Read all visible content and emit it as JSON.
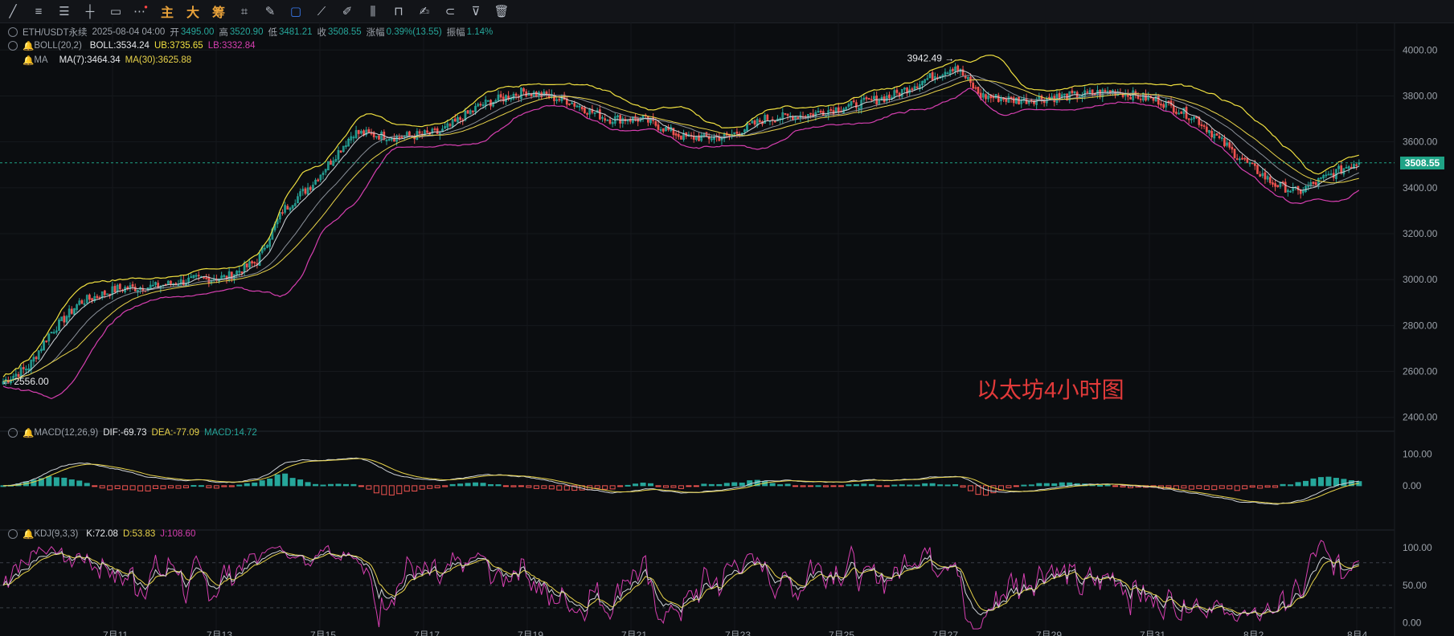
{
  "toolbar": {
    "icons": [
      "line-tool-icon",
      "parallel-lines-icon",
      "horizontal-lines-icon",
      "ray-icon",
      "rectangle-icon",
      "more-icon",
      "",
      "",
      "",
      "brush-icon",
      "pen-icon",
      "bookmark-icon",
      "ruler-icon",
      "pencil-icon",
      "candle-icon",
      "lock-icon",
      "edit-icon",
      "magnet-icon",
      "filter-icon",
      "trash-icon"
    ],
    "labels": [
      "主",
      "大",
      "筹"
    ]
  },
  "header": {
    "symbol": "ETH/USDT永续",
    "time": "2025-08-04 04:00",
    "open_label": "开",
    "open": "3495.00",
    "high_label": "高",
    "high": "3520.90",
    "low_label": "低",
    "low": "3481.21",
    "close_label": "收",
    "close": "3508.55",
    "change_label": "涨幅",
    "change": "0.39%(13.55)",
    "amp_label": "振幅",
    "amp": "1.14%"
  },
  "boll": {
    "name": "BOLL(20,2)",
    "mid": "BOLL:3534.24",
    "ub": "UB:3735.65",
    "lb": "LB:3332.84"
  },
  "ma": {
    "name": "MA",
    "ma7": "MA(7):3464.34",
    "ma30": "MA(30):3625.88"
  },
  "macd": {
    "name": "MACD(12,26,9)",
    "dif": "DIF:-69.73",
    "dea": "DEA:-77.09",
    "macd": "MACD:14.72"
  },
  "kdj": {
    "name": "KDJ(9,3,3)",
    "k": "K:72.08",
    "d": "D:53.83",
    "j": "J:108.60"
  },
  "last_price": "3508.55",
  "annotations": {
    "high_mark": "3942.49 →",
    "low_mark": "← 2556.00"
  },
  "watermark": "以太坊4小时图",
  "colors": {
    "up": "#26a69a",
    "down": "#ef5350",
    "ub": "#f0e040",
    "lb": "#d63fb0",
    "mid": "#cfd3d8",
    "ma30": "#e8d34a",
    "badge": "#1fa386"
  },
  "chart_data": [
    {
      "type": "candlestick",
      "title": "以太坊4小时图",
      "y_ticks": [
        "4000.00",
        "3800.00",
        "3600.00",
        "3400.00",
        "3200.00",
        "3000.00",
        "2800.00",
        "2600.00",
        "2400.00"
      ],
      "x_ticks": [
        "7月11",
        "7月13",
        "7月15",
        "7月17",
        "7月19",
        "7月21",
        "7月23",
        "7月25",
        "7月27",
        "7月29",
        "7月31",
        "8月2",
        "8月4"
      ],
      "ylim": [
        2350,
        4050
      ],
      "max_label": 3942.49,
      "min_label": 2556.0,
      "last": 3508.55,
      "key_points": [
        [
          0,
          2556
        ],
        [
          10,
          2620
        ],
        [
          18,
          2760
        ],
        [
          30,
          2900
        ],
        [
          45,
          2960
        ],
        [
          60,
          2970
        ],
        [
          75,
          3000
        ],
        [
          88,
          3010
        ],
        [
          100,
          3080
        ],
        [
          110,
          3300
        ],
        [
          122,
          3420
        ],
        [
          138,
          3640
        ],
        [
          155,
          3620
        ],
        [
          172,
          3640
        ],
        [
          188,
          3760
        ],
        [
          205,
          3820
        ],
        [
          222,
          3780
        ],
        [
          238,
          3700
        ],
        [
          252,
          3700
        ],
        [
          268,
          3620
        ],
        [
          285,
          3620
        ],
        [
          300,
          3700
        ],
        [
          318,
          3720
        ],
        [
          335,
          3760
        ],
        [
          350,
          3800
        ],
        [
          365,
          3880
        ],
        [
          375,
          3930
        ],
        [
          385,
          3800
        ],
        [
          400,
          3780
        ],
        [
          420,
          3800
        ],
        [
          438,
          3820
        ],
        [
          455,
          3780
        ],
        [
          470,
          3700
        ],
        [
          485,
          3550
        ],
        [
          500,
          3420
        ],
        [
          510,
          3380
        ],
        [
          520,
          3440
        ],
        [
          532,
          3508
        ]
      ],
      "series": [
        {
          "name": "BOLL",
          "role": "mid"
        },
        {
          "name": "UB",
          "role": "upper"
        },
        {
          "name": "LB",
          "role": "lower"
        },
        {
          "name": "MA(7)"
        },
        {
          "name": "MA(30)"
        }
      ]
    },
    {
      "type": "bar",
      "title": "MACD(12,26,9)",
      "y_ticks": [
        "100.00",
        "0.00"
      ],
      "ylim": [
        -120,
        160
      ]
    },
    {
      "type": "line",
      "title": "KDJ(9,3,3)",
      "y_ticks": [
        "100.00",
        "50.00",
        "0.00"
      ],
      "ylim": [
        -10,
        115
      ]
    }
  ]
}
